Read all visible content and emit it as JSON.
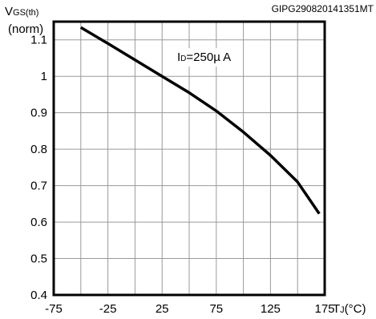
{
  "chart_data": {
    "type": "line",
    "title": "",
    "figure_id": "GIPG290820141351MT",
    "ylabel_main": "V",
    "ylabel_sub": "GS(th)",
    "ylabel_unit": "(norm)",
    "xlabel_main": "T",
    "xlabel_sub": "J",
    "xlabel_unit": "(°C)",
    "xlim": [
      -75,
      175
    ],
    "ylim": [
      0.4,
      1.15
    ],
    "x_ticks": [
      -75,
      -25,
      25,
      75,
      125,
      175
    ],
    "x_tick_labels": [
      "-75",
      "-25",
      "25",
      "75",
      "125",
      "175"
    ],
    "y_ticks": [
      0.4,
      0.5,
      0.6,
      0.7,
      0.8,
      0.9,
      1.0,
      1.1
    ],
    "y_tick_labels": [
      "0.4",
      "0.5",
      "0.6",
      "0.7",
      "0.8",
      "0.9",
      "1",
      "1.1"
    ],
    "grid": true,
    "annotation": {
      "main": "I",
      "sub": "D",
      "rest": "=250µ A"
    },
    "series": [
      {
        "color": "#000000",
        "x": [
          -50,
          -25,
          0,
          25,
          50,
          75,
          100,
          125,
          150,
          170
        ],
        "y": [
          1.134,
          1.09,
          1.045,
          1.0,
          0.955,
          0.905,
          0.847,
          0.783,
          0.71,
          0.623
        ]
      }
    ]
  }
}
